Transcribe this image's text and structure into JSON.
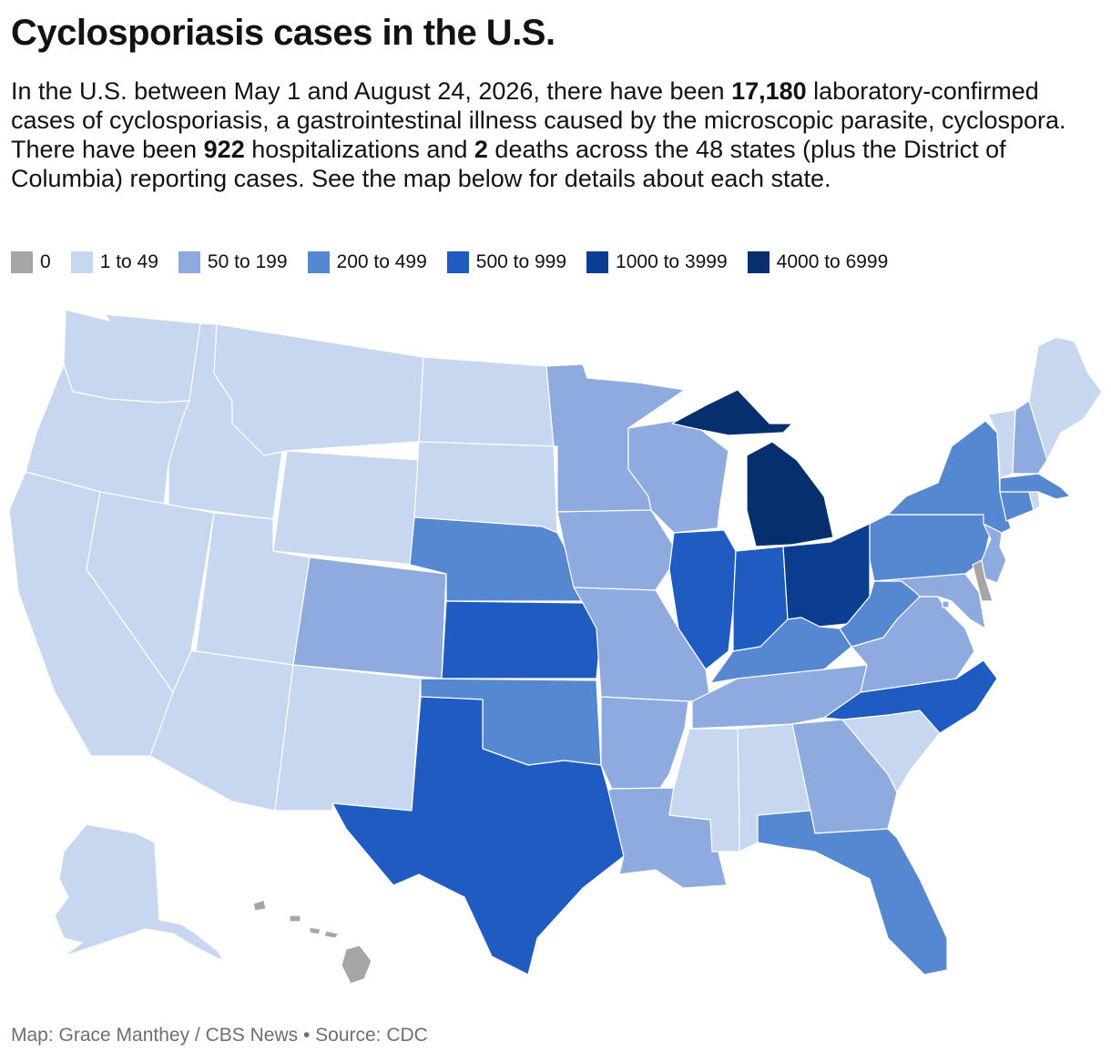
{
  "title": "Cyclosporiasis cases in the U.S.",
  "description": {
    "part1": "In the U.S. between May 1 and August 24, 2026, there have been ",
    "total_cases": "17,180",
    "part2": " laboratory-confirmed cases of cyclosporiasis, a gastrointestinal illness caused by the microscopic parasite, cyclospora. There have been ",
    "hospitalizations": "922",
    "part3": " hospitalizations and ",
    "deaths": "2",
    "part4": " deaths across the 48 states (plus the District of Columbia) reporting cases. See the map below for details about each state."
  },
  "legend": [
    {
      "label": "0",
      "color": "#a6a6a6"
    },
    {
      "label": "1 to 49",
      "color": "#c6d7ef"
    },
    {
      "label": "50 to 199",
      "color": "#8eaade"
    },
    {
      "label": "200 to 499",
      "color": "#5687d1"
    },
    {
      "label": "500 to 999",
      "color": "#1f5bc1"
    },
    {
      "label": "1000 to 3999",
      "color": "#0b3e91"
    },
    {
      "label": "4000 to 6999",
      "color": "#052f6d"
    }
  ],
  "state_bins": {
    "WA": 1,
    "OR": 1,
    "CA": 1,
    "ID": 1,
    "NV": 1,
    "MT": 1,
    "WY": 1,
    "UT": 1,
    "AZ": 1,
    "CO": 2,
    "NM": 1,
    "ND": 1,
    "SD": 1,
    "NE": 3,
    "KS": 4,
    "OK": 3,
    "TX": 4,
    "MN": 2,
    "IA": 2,
    "MO": 2,
    "AR": 2,
    "LA": 2,
    "WI": 2,
    "IL": 4,
    "MI": 6,
    "IN": 4,
    "OH": 5,
    "KY": 3,
    "TN": 2,
    "MS": 1,
    "AL": 1,
    "GA": 2,
    "FL": 3,
    "SC": 1,
    "NC": 4,
    "VA": 2,
    "WV": 3,
    "MD": 2,
    "DE": 0,
    "NJ": 2,
    "PA": 3,
    "NY": 3,
    "CT": 3,
    "RI": 1,
    "MA": 3,
    "VT": 1,
    "NH": 2,
    "ME": 1,
    "DC": 2,
    "AK": 1,
    "HI": 0
  },
  "credit": "Map: Grace Manthey / CBS News • Source: CDC"
}
